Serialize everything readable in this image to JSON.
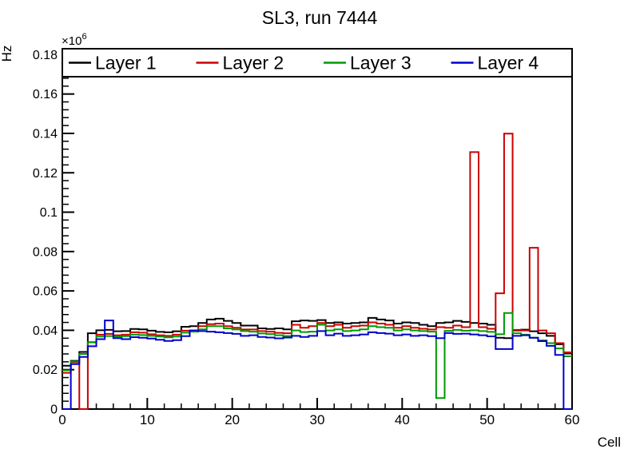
{
  "chart_data": {
    "type": "step-histogram",
    "title": "SL3, run 7444",
    "xlabel": "Cell",
    "ylabel": "Hz",
    "y_multiplier": {
      "base": "×10",
      "exp": "6"
    },
    "bins": 60,
    "xlim": [
      0,
      60
    ],
    "ylim": [
      0,
      0.183
    ],
    "xticks": [
      0,
      10,
      20,
      30,
      40,
      50,
      60
    ],
    "x_minor_step": 2,
    "yticks": [
      0,
      0.02,
      0.04,
      0.06,
      0.08,
      0.1,
      0.12,
      0.14,
      0.16,
      0.18
    ],
    "ytick_labels": [
      "0",
      "0.02",
      "0.04",
      "0.06",
      "0.08",
      "0.1",
      "0.12",
      "0.14",
      "0.16",
      "0.18"
    ],
    "y_minor_step": 0.004,
    "grid": false,
    "legend_position": "top-inside-full-width",
    "frame_color": "#000000",
    "background_color": "#ffffff",
    "series": [
      {
        "name": "Layer 1",
        "color": "#000000",
        "values": [
          0.022,
          0.0245,
          0.029,
          0.0385,
          0.04,
          0.0402,
          0.0395,
          0.0396,
          0.0407,
          0.0405,
          0.0398,
          0.0392,
          0.039,
          0.0395,
          0.0418,
          0.0421,
          0.0437,
          0.0455,
          0.0459,
          0.0448,
          0.0437,
          0.0424,
          0.0424,
          0.041,
          0.0407,
          0.041,
          0.0405,
          0.0446,
          0.045,
          0.0448,
          0.0452,
          0.0437,
          0.044,
          0.0434,
          0.0437,
          0.044,
          0.0463,
          0.0455,
          0.045,
          0.0434,
          0.044,
          0.0437,
          0.0428,
          0.0421,
          0.0437,
          0.044,
          0.0448,
          0.0443,
          0.0437,
          0.0434,
          0.0428,
          0.0362,
          0.036,
          0.0399,
          0.0403,
          0.0395,
          0.0385,
          0.0372,
          0.0329,
          0.0282
        ]
      },
      {
        "name": "Layer 2",
        "color": "#cc0000",
        "values": [
          0.0184,
          0.0238,
          0,
          0.034,
          0.0378,
          0.0382,
          0.0375,
          0.0378,
          0.039,
          0.0388,
          0.038,
          0.0375,
          0.0372,
          0.0378,
          0.0398,
          0.0399,
          0.0421,
          0.0431,
          0.0434,
          0.0421,
          0.0413,
          0.0404,
          0.0404,
          0.0396,
          0.0393,
          0.0387,
          0.0385,
          0.0428,
          0.0413,
          0.0421,
          0.0437,
          0.0421,
          0.0428,
          0.0413,
          0.0421,
          0.0424,
          0.044,
          0.0434,
          0.0428,
          0.0413,
          0.0421,
          0.0413,
          0.0408,
          0.0404,
          0.0416,
          0.0413,
          0.0424,
          0.0416,
          0.1305,
          0.0416,
          0.0408,
          0.0588,
          0.1399,
          0.0402,
          0.0399,
          0.0819,
          0.0399,
          0.0385,
          0.0335,
          0.0288
        ]
      },
      {
        "name": "Layer 3",
        "color": "#009900",
        "values": [
          0.0197,
          0.0242,
          0.028,
          0.0339,
          0.0368,
          0.0371,
          0.0368,
          0.037,
          0.0378,
          0.0376,
          0.0372,
          0.0368,
          0.0364,
          0.0368,
          0.0388,
          0.0393,
          0.0405,
          0.0421,
          0.0421,
          0.041,
          0.0404,
          0.0396,
          0.0393,
          0.0384,
          0.0381,
          0.0375,
          0.0371,
          0.0399,
          0.0391,
          0.0393,
          0.0428,
          0.0399,
          0.0405,
          0.0396,
          0.0399,
          0.0405,
          0.0421,
          0.0416,
          0.0413,
          0.0399,
          0.0405,
          0.0399,
          0.0396,
          0.0393,
          0.0056,
          0.0397,
          0.0402,
          0.0398,
          0.04,
          0.0396,
          0.0392,
          0.038,
          0.0488,
          0.0385,
          0.0378,
          0.0362,
          0.0349,
          0.0335,
          0.0308,
          0.0268
        ]
      },
      {
        "name": "Layer 4",
        "color": "#0000cc",
        "values": [
          0,
          0.0228,
          0.0265,
          0.0319,
          0.0355,
          0.045,
          0.036,
          0.0355,
          0.0365,
          0.0362,
          0.0358,
          0.0352,
          0.0346,
          0.035,
          0.037,
          0.0399,
          0.0396,
          0.0393,
          0.039,
          0.0386,
          0.0382,
          0.0372,
          0.0375,
          0.0366,
          0.0363,
          0.0359,
          0.0363,
          0.0372,
          0.0366,
          0.0372,
          0.0396,
          0.0375,
          0.0383,
          0.0372,
          0.0375,
          0.0379,
          0.039,
          0.0386,
          0.0383,
          0.0375,
          0.0379,
          0.0372,
          0.0375,
          0.037,
          0.036,
          0.0386,
          0.0382,
          0.0383,
          0.0379,
          0.0375,
          0.0369,
          0.0305,
          0.0305,
          0.0372,
          0.0375,
          0.0362,
          0.0345,
          0.0321,
          0.0275,
          0
        ]
      }
    ]
  }
}
